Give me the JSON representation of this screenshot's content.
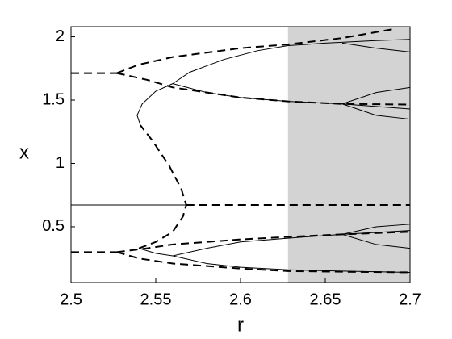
{
  "chart_data": {
    "type": "line",
    "xlabel": "r",
    "ylabel": "x",
    "xlim": [
      2.5,
      2.7
    ],
    "ylim": [
      0.06,
      2.08
    ],
    "xticks": [
      2.5,
      2.55,
      2.6,
      2.65,
      2.7
    ],
    "yticks": [
      0.5,
      1,
      1.5,
      2
    ],
    "shaded_xrange": [
      2.628,
      2.7
    ],
    "shade_color": "#d3d3d3",
    "series": [
      {
        "color": "#000000",
        "dashed": false,
        "x": [
          2.5,
          2.568
        ],
        "values": [
          0.672,
          0.672
        ]
      },
      {
        "color": "#000000",
        "dashed": true,
        "x": [
          2.568,
          2.7
        ],
        "values": [
          0.672,
          0.672
        ]
      },
      {
        "color": "#000000",
        "dashed": true,
        "x": [
          2.5,
          2.527
        ],
        "values": [
          1.713,
          1.713
        ]
      },
      {
        "color": "#000000",
        "dashed": true,
        "x": [
          2.5,
          2.527
        ],
        "values": [
          0.3,
          0.3
        ]
      },
      {
        "color": "#000000",
        "dashed": true,
        "x": [
          2.527,
          2.54,
          2.56,
          2.6,
          2.628,
          2.66,
          2.69
        ],
        "values": [
          1.713,
          1.78,
          1.84,
          1.91,
          1.94,
          1.99,
          2.06
        ]
      },
      {
        "color": "#000000",
        "dashed": true,
        "x": [
          2.527,
          2.545,
          2.56,
          2.6,
          2.628,
          2.66,
          2.7
        ],
        "values": [
          1.713,
          1.66,
          1.6,
          1.52,
          1.49,
          1.47,
          1.465
        ]
      },
      {
        "color": "#000000",
        "dashed": true,
        "x": [
          2.527,
          2.545,
          2.56,
          2.6,
          2.628,
          2.66,
          2.7
        ],
        "values": [
          0.3,
          0.33,
          0.36,
          0.4,
          0.42,
          0.44,
          0.46
        ]
      },
      {
        "color": "#000000",
        "dashed": true,
        "x": [
          2.527,
          2.54,
          2.56,
          2.6,
          2.628,
          2.66,
          2.7
        ],
        "values": [
          0.3,
          0.25,
          0.21,
          0.17,
          0.15,
          0.145,
          0.14
        ]
      },
      {
        "color": "#000000",
        "dashed": true,
        "x": [
          2.54,
          2.55,
          2.56,
          2.566,
          2.568,
          2.565,
          2.558,
          2.548,
          2.541
        ],
        "values": [
          0.33,
          0.38,
          0.46,
          0.58,
          0.672,
          0.8,
          0.98,
          1.18,
          1.3
        ]
      },
      {
        "color": "#000000",
        "dashed": false,
        "x": [
          2.541,
          2.539,
          2.542,
          2.55,
          2.56
        ],
        "values": [
          1.3,
          1.38,
          1.47,
          1.57,
          1.63
        ]
      },
      {
        "color": "#000000",
        "dashed": false,
        "x": [
          2.56,
          2.57,
          2.59,
          2.61,
          2.628,
          2.65,
          2.68,
          2.7
        ],
        "values": [
          1.63,
          1.72,
          1.82,
          1.89,
          1.93,
          1.95,
          1.97,
          1.98
        ]
      },
      {
        "color": "#000000",
        "dashed": false,
        "x": [
          2.56,
          2.58,
          2.6,
          2.628,
          2.66,
          2.68,
          2.7
        ],
        "values": [
          1.63,
          1.56,
          1.52,
          1.49,
          1.47,
          1.45,
          1.43
        ]
      },
      {
        "color": "#000000",
        "dashed": false,
        "x": [
          2.54,
          2.55,
          2.56
        ],
        "values": [
          0.33,
          0.29,
          0.27
        ]
      },
      {
        "color": "#000000",
        "dashed": false,
        "x": [
          2.56,
          2.58,
          2.6,
          2.628,
          2.66,
          2.7
        ],
        "values": [
          0.27,
          0.33,
          0.38,
          0.41,
          0.44,
          0.47
        ]
      },
      {
        "color": "#000000",
        "dashed": false,
        "x": [
          2.56,
          2.58,
          2.6,
          2.628,
          2.66,
          2.7
        ],
        "values": [
          0.27,
          0.21,
          0.18,
          0.16,
          0.15,
          0.14
        ]
      },
      {
        "color": "#000000",
        "dashed": false,
        "x": [
          2.66,
          2.68,
          2.7
        ],
        "values": [
          1.95,
          1.91,
          1.88
        ]
      },
      {
        "color": "#000000",
        "dashed": false,
        "x": [
          2.66,
          2.68,
          2.7
        ],
        "values": [
          1.47,
          1.56,
          1.6
        ]
      },
      {
        "color": "#000000",
        "dashed": false,
        "x": [
          2.66,
          2.68,
          2.7
        ],
        "values": [
          1.47,
          1.38,
          1.35
        ]
      },
      {
        "color": "#000000",
        "dashed": false,
        "x": [
          2.66,
          2.68,
          2.7
        ],
        "values": [
          0.44,
          0.5,
          0.52
        ]
      },
      {
        "color": "#000000",
        "dashed": false,
        "x": [
          2.66,
          2.68,
          2.7
        ],
        "values": [
          0.44,
          0.36,
          0.33
        ]
      }
    ]
  }
}
